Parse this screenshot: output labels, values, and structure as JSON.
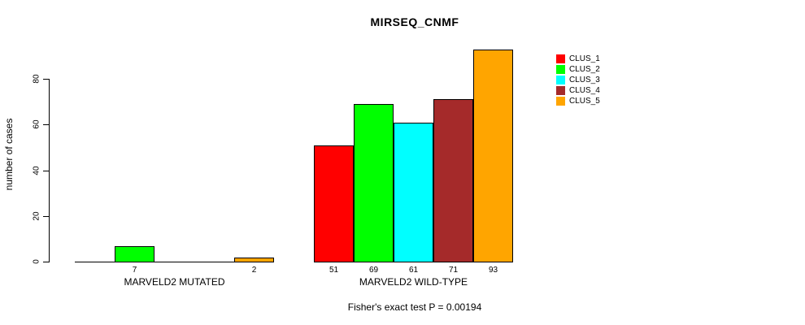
{
  "chart_data": {
    "type": "bar",
    "title": "MIRSEQ_CNMF",
    "ylabel": "number of cases",
    "annotation": "Fisher's exact test P = 0.00194",
    "yticks": [
      0,
      20,
      40,
      60,
      80
    ],
    "ylim": [
      0,
      93
    ],
    "grid": false,
    "legend_position": "right",
    "bar_value_labels_shown": "nonzero-only",
    "series": [
      {
        "name": "CLUS_1",
        "color": "#FF0000"
      },
      {
        "name": "CLUS_2",
        "color": "#00FF00"
      },
      {
        "name": "CLUS_3",
        "color": "#00FFFF"
      },
      {
        "name": "CLUS_4",
        "color": "#A52A2A"
      },
      {
        "name": "CLUS_5",
        "color": "#FFA500"
      }
    ],
    "groups": [
      {
        "label": "MARVELD2 MUTATED",
        "values": [
          0,
          7,
          0,
          0,
          2
        ]
      },
      {
        "label": "MARVELD2 WILD-TYPE",
        "values": [
          51,
          69,
          61,
          71,
          93
        ]
      }
    ]
  }
}
